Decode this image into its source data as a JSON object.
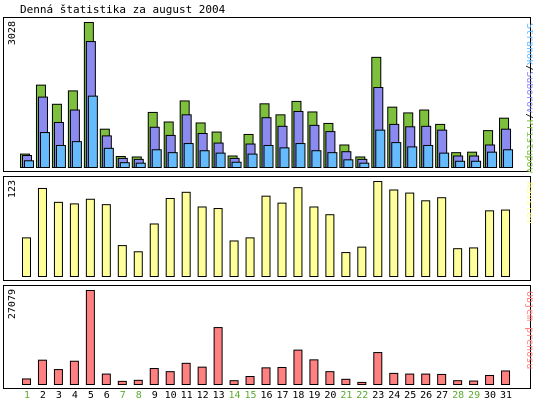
{
  "title": "Denná štatistika za august 2004",
  "colors": {
    "background": "#ffffff",
    "panel_border": "#000000",
    "pristupov": "#7ec03e",
    "suborov": "#8a8af0",
    "stranok": "#66bbff",
    "navstev": "#ffff99",
    "prenos": "#ff8080",
    "weekday": "#000000",
    "weekend": "#5cab2e"
  },
  "chart_data": [
    {
      "type": "bar",
      "panel": "pages",
      "y_axis_label": "3028",
      "ylim": [
        0,
        3028
      ],
      "side_label_parts": [
        {
          "text": "Stránok",
          "color_key": "stranok"
        },
        {
          "text": "/",
          "color_key": "weekday"
        },
        {
          "text": "Súborov",
          "color_key": "suborov"
        },
        {
          "text": "/",
          "color_key": "weekday"
        },
        {
          "text": "Prístupov",
          "color_key": "pristupov"
        }
      ],
      "categories": [
        "1",
        "2",
        "3",
        "4",
        "5",
        "6",
        "7",
        "8",
        "9",
        "10",
        "11",
        "12",
        "13",
        "14",
        "15",
        "16",
        "17",
        "18",
        "19",
        "20",
        "21",
        "22",
        "23",
        "24",
        "25",
        "26",
        "27",
        "28",
        "29",
        "30",
        "31"
      ],
      "series": [
        {
          "name": "Prístupov",
          "color_key": "pristupov",
          "values": [
            280,
            1720,
            1320,
            1600,
            3028,
            800,
            230,
            220,
            1150,
            950,
            1390,
            930,
            740,
            240,
            690,
            1330,
            1100,
            1380,
            1160,
            920,
            470,
            220,
            2300,
            1260,
            1140,
            1200,
            900,
            310,
            320,
            770,
            1030
          ]
        },
        {
          "name": "Súborov",
          "color_key": "suborov",
          "values": [
            250,
            1470,
            940,
            1200,
            2630,
            660,
            190,
            170,
            840,
            670,
            1100,
            710,
            510,
            190,
            490,
            1040,
            860,
            1170,
            880,
            750,
            330,
            170,
            1670,
            900,
            850,
            860,
            780,
            240,
            240,
            470,
            800
          ]
        },
        {
          "name": "Stránok",
          "color_key": "stranok",
          "values": [
            140,
            730,
            460,
            540,
            1490,
            400,
            100,
            90,
            370,
            310,
            500,
            350,
            300,
            110,
            280,
            460,
            410,
            500,
            350,
            310,
            160,
            90,
            780,
            520,
            430,
            460,
            300,
            130,
            130,
            320,
            370
          ]
        }
      ]
    },
    {
      "type": "bar",
      "panel": "visits",
      "y_axis_label": "123",
      "ylim": [
        0,
        123
      ],
      "side_label_parts": [
        {
          "text": "Návštev",
          "color_key": "navstev"
        }
      ],
      "categories": [
        "1",
        "2",
        "3",
        "4",
        "5",
        "6",
        "7",
        "8",
        "9",
        "10",
        "11",
        "12",
        "13",
        "14",
        "15",
        "16",
        "17",
        "18",
        "19",
        "20",
        "21",
        "22",
        "23",
        "24",
        "25",
        "26",
        "27",
        "28",
        "29",
        "30",
        "31"
      ],
      "series": [
        {
          "name": "Návštev",
          "color_key": "navstev",
          "values": [
            50,
            114,
            96,
            94,
            100,
            93,
            40,
            32,
            68,
            101,
            109,
            90,
            88,
            46,
            50,
            104,
            95,
            115,
            90,
            80,
            31,
            38,
            123,
            112,
            108,
            98,
            102,
            36,
            37,
            85,
            86
          ]
        }
      ]
    },
    {
      "type": "bar",
      "panel": "transfer",
      "y_axis_label": "27079",
      "ylim": [
        0,
        27079
      ],
      "side_label_parts": [
        {
          "text": "Objem prenosu",
          "color_key": "prenos"
        }
      ],
      "categories": [
        "1",
        "2",
        "3",
        "4",
        "5",
        "6",
        "7",
        "8",
        "9",
        "10",
        "11",
        "12",
        "13",
        "14",
        "15",
        "16",
        "17",
        "18",
        "19",
        "20",
        "21",
        "22",
        "23",
        "24",
        "25",
        "26",
        "27",
        "28",
        "29",
        "30",
        "31"
      ],
      "series": [
        {
          "name": "Objem prenosu",
          "color_key": "prenos",
          "values": [
            1600,
            7000,
            4300,
            6700,
            27079,
            3000,
            900,
            1200,
            4600,
            3700,
            6100,
            5000,
            16400,
            1100,
            2300,
            4800,
            4900,
            9900,
            7100,
            3700,
            1500,
            600,
            9200,
            3200,
            3000,
            3000,
            2900,
            1100,
            1000,
            2600,
            3900
          ]
        }
      ]
    }
  ],
  "x_axis": {
    "days": [
      "1",
      "2",
      "3",
      "4",
      "5",
      "6",
      "7",
      "8",
      "9",
      "10",
      "11",
      "12",
      "13",
      "14",
      "15",
      "16",
      "17",
      "18",
      "19",
      "20",
      "21",
      "22",
      "23",
      "24",
      "25",
      "26",
      "27",
      "28",
      "29",
      "30",
      "31"
    ],
    "weekend_days": [
      "1",
      "7",
      "8",
      "14",
      "15",
      "21",
      "22",
      "28",
      "29"
    ]
  }
}
